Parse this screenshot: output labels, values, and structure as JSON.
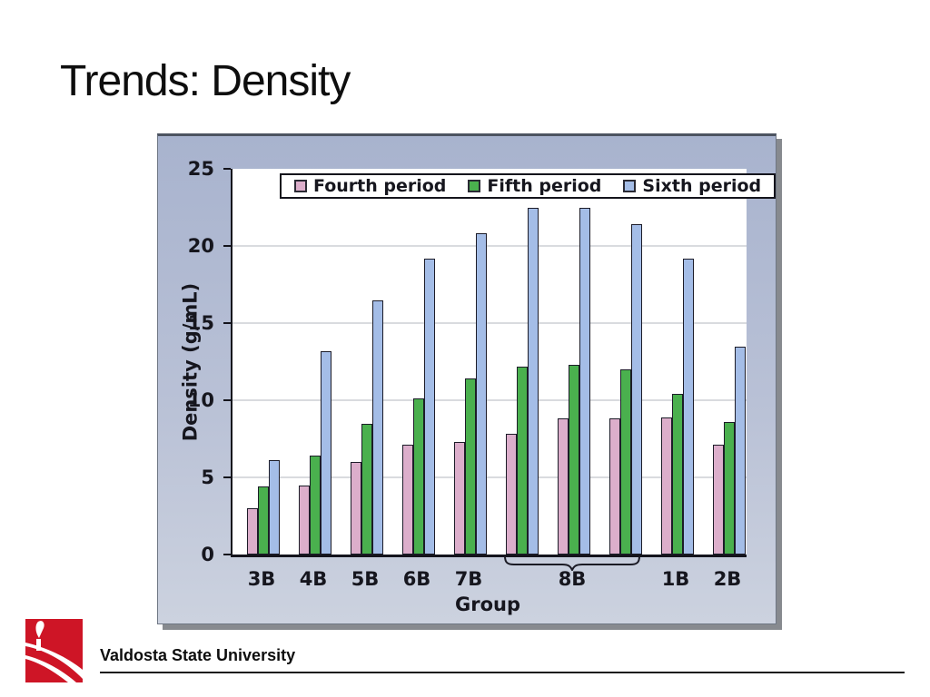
{
  "slide": {
    "title": "Trends: Density",
    "footer": {
      "university": "Valdosta State University"
    }
  },
  "chart_data": {
    "type": "bar",
    "title": "",
    "xlabel": "Group",
    "ylabel": "Density (g/mL)",
    "ylim": [
      0,
      25
    ],
    "yticks": [
      0,
      5,
      10,
      15,
      20,
      25
    ],
    "grid": true,
    "legend_position": "top inside plot area",
    "x_tick_labels": [
      "3B",
      "4B",
      "5B",
      "6B",
      "7B",
      "8B",
      "1B",
      "2B"
    ],
    "brace": {
      "label": "8B",
      "spans_groups": [
        5,
        6,
        7
      ]
    },
    "groups": [
      "3B",
      "4B",
      "5B",
      "6B",
      "7B",
      "8B",
      "8B",
      "8B",
      "1B",
      "2B"
    ],
    "series": [
      {
        "name": "Fourth period",
        "color": "#dcaecb",
        "values": [
          3.0,
          4.5,
          6.0,
          7.1,
          7.3,
          7.8,
          8.8,
          8.8,
          8.9,
          7.1
        ]
      },
      {
        "name": "Fifth period",
        "color": "#4ab04e",
        "values": [
          4.4,
          6.4,
          8.5,
          10.1,
          11.4,
          12.2,
          12.3,
          12.0,
          10.4,
          8.6
        ]
      },
      {
        "name": "Sixth period",
        "color": "#a4bde7",
        "values": [
          6.1,
          13.2,
          16.5,
          19.2,
          20.8,
          22.5,
          22.5,
          21.4,
          19.2,
          13.5
        ]
      }
    ],
    "colors": {
      "plot_bg": "#ffffff",
      "figure_bg_top": "#a8b3ce",
      "figure_bg_bottom": "#ccd2df",
      "gridline": "#d9dbdf",
      "axis": "#14141c"
    }
  }
}
